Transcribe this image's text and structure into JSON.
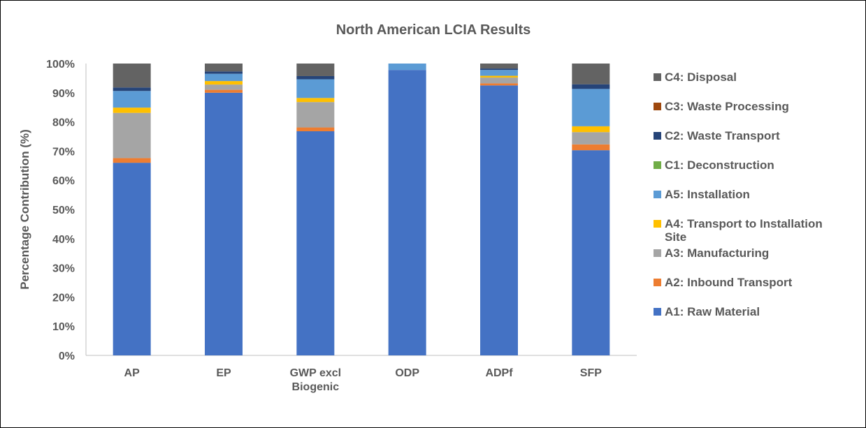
{
  "chart_data": {
    "type": "bar",
    "stacked": true,
    "title": "North American LCIA Results",
    "ylabel": "Percentage Contribution (%)",
    "xlabel": "",
    "ylim": [
      0,
      100
    ],
    "yticks": [
      "0%",
      "10%",
      "20%",
      "30%",
      "40%",
      "50%",
      "60%",
      "70%",
      "80%",
      "90%",
      "100%"
    ],
    "grid": false,
    "legend_position": "right",
    "categories": [
      [
        "AP"
      ],
      [
        "EP"
      ],
      [
        "GWP excl",
        "Biogenic"
      ],
      [
        "ODP"
      ],
      [
        "ADPf"
      ],
      [
        "SFP"
      ]
    ],
    "series": [
      {
        "name": "A1: Raw Material",
        "color": "#4472C4",
        "values": [
          66.0,
          90.0,
          76.8,
          97.8,
          92.5,
          70.3
        ]
      },
      {
        "name": "A2: Inbound Transport",
        "color": "#ED7D31",
        "values": [
          1.6,
          1.0,
          1.3,
          0.0,
          0.7,
          2.0
        ]
      },
      {
        "name": "A3: Manufacturing",
        "color": "#A5A5A5",
        "values": [
          15.5,
          1.8,
          8.7,
          0.0,
          2.0,
          4.2
        ]
      },
      {
        "name": "A4: Transport to Installation Site",
        "color": "#FFC000",
        "values": [
          1.8,
          1.2,
          1.4,
          0.0,
          0.6,
          2.0
        ]
      },
      {
        "name": "A5: Installation",
        "color": "#5B9BD5",
        "values": [
          5.7,
          2.5,
          6.4,
          2.2,
          2.0,
          12.8
        ]
      },
      {
        "name": "C1: Deconstruction",
        "color": "#70AD47",
        "values": [
          0.0,
          0.0,
          0.0,
          0.0,
          0.0,
          0.0
        ]
      },
      {
        "name": "C2: Waste Transport",
        "color": "#264478",
        "values": [
          1.2,
          0.8,
          1.1,
          0.0,
          0.5,
          1.6
        ]
      },
      {
        "name": "C3: Waste Processing",
        "color": "#9E480E",
        "values": [
          0.0,
          0.0,
          0.0,
          0.0,
          0.0,
          0.0
        ]
      },
      {
        "name": "C4: Disposal",
        "color": "#636363",
        "values": [
          8.2,
          2.7,
          4.3,
          0.0,
          1.7,
          7.1
        ]
      }
    ],
    "legend_lines": [
      {
        "series": 8,
        "lines": [
          "C4: Disposal"
        ]
      },
      {
        "series": 7,
        "lines": [
          "C3: Waste Processing"
        ]
      },
      {
        "series": 6,
        "lines": [
          "C2: Waste Transport"
        ]
      },
      {
        "series": 5,
        "lines": [
          "C1: Deconstruction"
        ]
      },
      {
        "series": 4,
        "lines": [
          "A5: Installation"
        ]
      },
      {
        "series": 3,
        "lines": [
          "A4: Transport to Installation",
          "Site"
        ]
      },
      {
        "series": 2,
        "lines": [
          "A3: Manufacturing"
        ]
      },
      {
        "series": 1,
        "lines": [
          "A2: Inbound Transport"
        ]
      },
      {
        "series": 0,
        "lines": [
          "A1: Raw Material"
        ]
      }
    ]
  }
}
